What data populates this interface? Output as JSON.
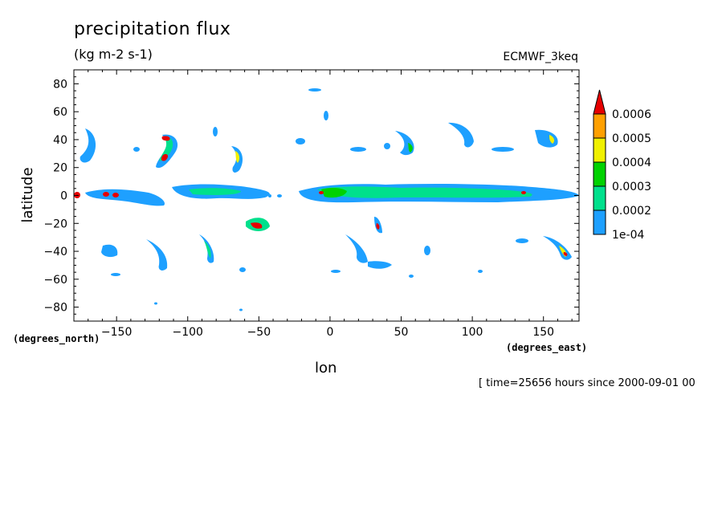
{
  "title": "precipitation flux",
  "units": "(kg m-2 s-1)",
  "dataset": "ECMWF_3keq",
  "time_label": "[ time=25656 hours since 2000-09-01 00",
  "lat_unit": "(degrees_north)",
  "lon_unit": "(degrees_east)",
  "colors": {
    "lvl1": "#1ea0ff",
    "lvl2": "#00e08c",
    "lvl3": "#00d200",
    "lvl4": "#f0f000",
    "lvl5": "#ffa000",
    "lvl6": "#e60000"
  },
  "chart_data": {
    "type": "heatmap",
    "title": "precipitation flux",
    "subtitle": "(kg m-2 s-1)",
    "xlabel": "lon",
    "ylabel": "latitude",
    "xlim": [
      -180,
      175
    ],
    "ylim": [
      -90,
      90
    ],
    "x_ticks": [
      -150,
      -100,
      -50,
      0,
      50,
      100,
      150
    ],
    "y_ticks": [
      80,
      60,
      40,
      20,
      0,
      -20,
      -40,
      -60,
      -80
    ],
    "colorbar": {
      "levels": [
        "1e-04",
        "0.0002",
        "0.0003",
        "0.0004",
        "0.0005",
        "0.0006"
      ],
      "colors": [
        "#1ea0ff",
        "#00e08c",
        "#00d200",
        "#f0f000",
        "#ffa000",
        "#e60000"
      ]
    },
    "features": [
      {
        "lon": -170,
        "lat": 20,
        "rx": 15,
        "ry": 4,
        "rot": 0,
        "level": 2
      },
      {
        "lon": -100,
        "lat": 2,
        "rx": 20,
        "ry": 4,
        "rot": 0,
        "level": 2
      },
      {
        "lon": -70,
        "lat": 0,
        "rx": 20,
        "ry": 3,
        "rot": 0,
        "level": 1
      },
      {
        "lon": 20,
        "lat": 3,
        "rx": 25,
        "ry": 4,
        "rot": 0,
        "level": 2
      },
      {
        "lon": 60,
        "lat": 3,
        "rx": 25,
        "ry": 4,
        "rot": 0,
        "level": 2
      },
      {
        "lon": 110,
        "lat": 2,
        "rx": 20,
        "ry": 4,
        "rot": 0,
        "level": 2
      },
      {
        "lon": 160,
        "lat": 1,
        "rx": 15,
        "ry": 3,
        "rot": 0,
        "level": 1
      },
      {
        "lon": -45,
        "lat": -22,
        "rx": 8,
        "ry": 5,
        "rot": -20,
        "level": 4
      },
      {
        "lon": -112,
        "lat": 32,
        "rx": 6,
        "ry": 10,
        "rot": 30,
        "level": 3
      },
      {
        "lon": -60,
        "lat": 28,
        "rx": 4,
        "ry": 9,
        "rot": 0,
        "level": 3
      },
      {
        "lon": 60,
        "lat": 35,
        "rx": 5,
        "ry": 9,
        "rot": -10,
        "level": 2
      },
      {
        "lon": 160,
        "lat": 40,
        "rx": 6,
        "ry": 6,
        "rot": 0,
        "level": 2
      },
      {
        "lon": -88,
        "lat": -38,
        "rx": 4,
        "ry": 9,
        "rot": 0,
        "level": 2
      },
      {
        "lon": 165,
        "lat": -38,
        "rx": 6,
        "ry": 8,
        "rot": 20,
        "level": 2
      },
      {
        "lon": 36,
        "lat": -22,
        "rx": 2,
        "ry": 5,
        "rot": 0,
        "level": 4
      },
      {
        "lon": -178,
        "lat": -1,
        "rx": 1.5,
        "ry": 1.5,
        "rot": 0,
        "level": 6
      },
      {
        "lon": -158,
        "lat": 0,
        "rx": 2,
        "ry": 1.5,
        "rot": 0,
        "level": 5
      },
      {
        "lon": -148,
        "lat": 0,
        "rx": 2,
        "ry": 1.5,
        "rot": 0,
        "level": 5
      }
    ]
  }
}
